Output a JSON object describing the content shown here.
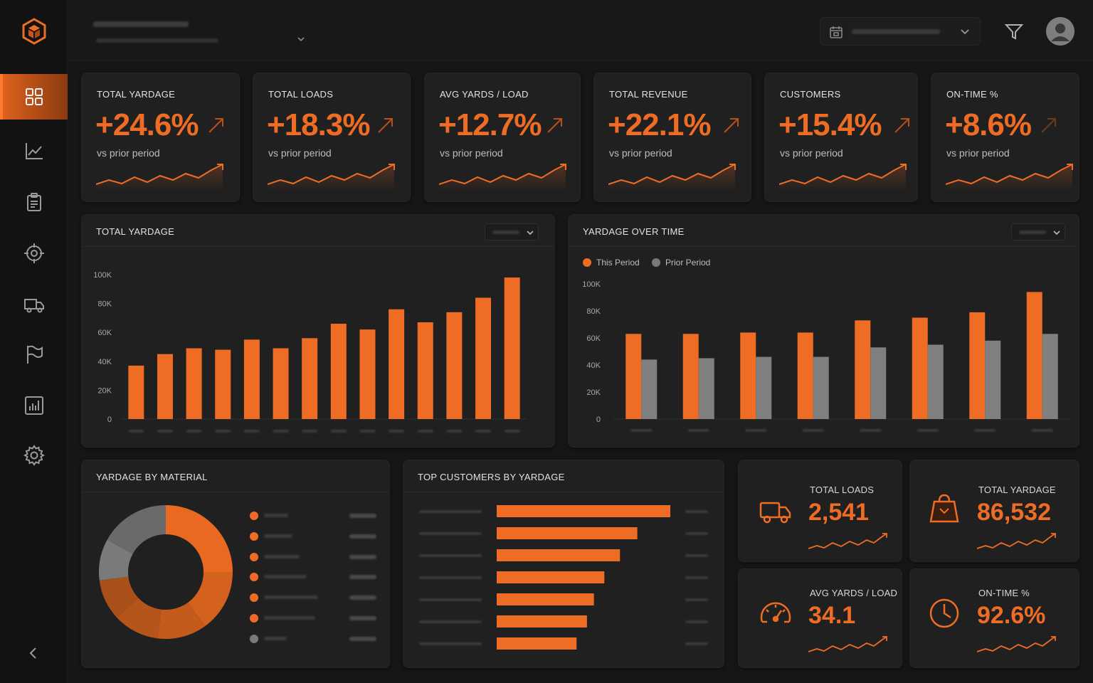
{
  "colors": {
    "accent": "#ef6c24",
    "accent_dark": "#b8501a",
    "gray": "#808080",
    "bg": "#161616",
    "card": "#202020"
  },
  "sidebar": {
    "logo_icon": "cube-logo-icon",
    "items": [
      {
        "icon": "dashboard-grid-icon",
        "active": true
      },
      {
        "icon": "line-chart-icon"
      },
      {
        "icon": "clipboard-icon"
      },
      {
        "icon": "target-icon"
      },
      {
        "icon": "truck-icon"
      },
      {
        "icon": "flag-icon"
      },
      {
        "icon": "bar-report-icon"
      },
      {
        "icon": "gear-icon"
      }
    ],
    "collapse_icon": "chevron-left-icon"
  },
  "header": {
    "date_icon": "calendar-icon",
    "filter_icon": "filter-icon",
    "avatar_icon": "user-avatar-icon"
  },
  "kpis": [
    {
      "label": "TOTAL YARDAGE",
      "value": "+24.6%",
      "sub": "vs prior period"
    },
    {
      "label": "TOTAL LOADS",
      "value": "+18.3%",
      "sub": "vs prior period"
    },
    {
      "label": "AVG YARDS / LOAD",
      "value": "+12.7%",
      "sub": "vs prior period"
    },
    {
      "label": "TOTAL REVENUE",
      "value": "+22.1%",
      "sub": "vs prior period"
    },
    {
      "label": "CUSTOMERS",
      "value": "+15.4%",
      "sub": "vs prior period"
    },
    {
      "label": "ON-TIME %",
      "value": "+8.6%",
      "sub": "vs prior period"
    }
  ],
  "yardage_panel": {
    "title": "TOTAL YARDAGE"
  },
  "time_panel": {
    "title": "YARDAGE OVER TIME",
    "legend": [
      "This Period",
      "Prior Period"
    ]
  },
  "material_panel": {
    "title": "YARDAGE BY MATERIAL"
  },
  "customers_panel": {
    "title": "TOP CUSTOMERS BY YARDAGE"
  },
  "stats": [
    {
      "label": "TOTAL LOADS",
      "value": "2,541",
      "icon": "truck-icon"
    },
    {
      "label": "TOTAL YARDAGE",
      "value": "86,532",
      "icon": "weight-bag-icon"
    },
    {
      "label": "AVG YARDS / LOAD",
      "value": "34.1",
      "icon": "speedometer-icon"
    },
    {
      "label": "ON-TIME %",
      "value": "92.6%",
      "icon": "clock-icon"
    }
  ],
  "chart_data": [
    {
      "type": "bar",
      "title": "TOTAL YARDAGE",
      "yticks": [
        "0",
        "20K",
        "40K",
        "60K",
        "80K",
        "100K"
      ],
      "ylim": [
        0,
        100000
      ],
      "values": [
        37000,
        45000,
        49000,
        48000,
        55000,
        49000,
        56000,
        66000,
        62000,
        76000,
        67000,
        74000,
        84000,
        98000
      ],
      "grid": false
    },
    {
      "type": "bar",
      "title": "YARDAGE OVER TIME",
      "legend_position": "top-left",
      "yticks": [
        "0",
        "20K",
        "40K",
        "60K",
        "80K",
        "100K"
      ],
      "ylim": [
        0,
        100000
      ],
      "series": [
        {
          "name": "This Period",
          "values": [
            63000,
            63000,
            64000,
            64000,
            73000,
            75000,
            79000,
            94000
          ]
        },
        {
          "name": "Prior Period",
          "values": [
            44000,
            45000,
            46000,
            46000,
            53000,
            55000,
            58000,
            63000
          ]
        }
      ],
      "grid": false
    },
    {
      "type": "pie",
      "title": "YARDAGE BY MATERIAL",
      "values": [
        25,
        15,
        12,
        11,
        10,
        10,
        17
      ],
      "slice_colors": [
        "#e8691f",
        "#d4621e",
        "#c45a1c",
        "#b5541b",
        "#a84f1a",
        "#7a7a7a",
        "#6a6a6a"
      ]
    },
    {
      "type": "bar",
      "title": "TOP CUSTOMERS BY YARDAGE",
      "orientation": "horizontal",
      "values": [
        100,
        81,
        71,
        62,
        56,
        52,
        46
      ]
    }
  ]
}
